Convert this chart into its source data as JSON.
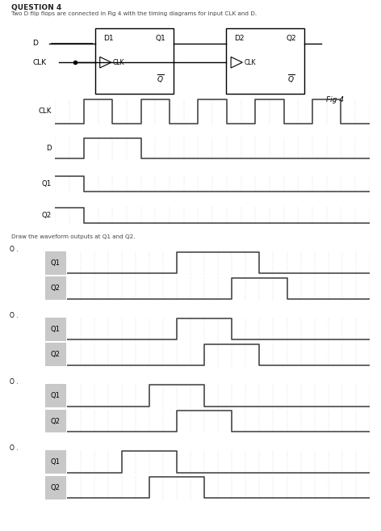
{
  "title": "QUESTION 4",
  "subtitle": "Two D flip flops are connected in Fig 4 with the timing diagrams for input CLK and D.",
  "fig4_label": "Fig 4",
  "draw_label": "Draw the waveform outputs at Q1 and Q2.",
  "clk_wave": [
    0,
    0,
    1,
    1,
    0,
    0,
    1,
    1,
    0,
    0,
    1,
    1,
    0,
    0,
    1,
    1,
    0,
    0,
    1,
    1,
    0,
    0
  ],
  "d_wave": [
    0,
    0,
    1,
    1,
    1,
    1,
    0,
    0,
    0,
    0,
    0,
    0,
    0,
    0,
    0,
    0,
    0,
    0,
    0,
    0,
    0,
    0
  ],
  "q1_given": [
    1,
    1,
    0,
    0,
    0,
    0,
    0,
    0,
    0,
    0,
    0,
    0,
    0,
    0,
    0,
    0,
    0,
    0,
    0,
    0,
    0,
    0
  ],
  "q2_given": [
    1,
    1,
    0,
    0,
    0,
    0,
    0,
    0,
    0,
    0,
    0,
    0,
    0,
    0,
    0,
    0,
    0,
    0,
    0,
    0,
    0,
    0
  ],
  "options": [
    {
      "q1": [
        0,
        0,
        0,
        0,
        0,
        0,
        0,
        0,
        1,
        1,
        1,
        1,
        1,
        1,
        0,
        0,
        0,
        0,
        0,
        0,
        0,
        0
      ],
      "q2": [
        0,
        0,
        0,
        0,
        0,
        0,
        0,
        0,
        0,
        0,
        0,
        0,
        1,
        1,
        1,
        1,
        0,
        0,
        0,
        0,
        0,
        0
      ]
    },
    {
      "q1": [
        0,
        0,
        0,
        0,
        0,
        0,
        0,
        0,
        1,
        1,
        1,
        1,
        0,
        0,
        0,
        0,
        0,
        0,
        0,
        0,
        0,
        0
      ],
      "q2": [
        0,
        0,
        0,
        0,
        0,
        0,
        0,
        0,
        0,
        0,
        1,
        1,
        1,
        1,
        0,
        0,
        0,
        0,
        0,
        0,
        0,
        0
      ]
    },
    {
      "q1": [
        0,
        0,
        0,
        0,
        0,
        0,
        1,
        1,
        1,
        1,
        0,
        0,
        0,
        0,
        0,
        0,
        0,
        0,
        0,
        0,
        0,
        0
      ],
      "q2": [
        0,
        0,
        0,
        0,
        0,
        0,
        0,
        0,
        1,
        1,
        1,
        1,
        0,
        0,
        0,
        0,
        0,
        0,
        0,
        0,
        0,
        0
      ]
    },
    {
      "q1": [
        0,
        0,
        0,
        0,
        1,
        1,
        1,
        1,
        0,
        0,
        0,
        0,
        0,
        0,
        0,
        0,
        0,
        0,
        0,
        0,
        0,
        0
      ],
      "q2": [
        0,
        0,
        0,
        0,
        0,
        0,
        1,
        1,
        1,
        1,
        0,
        0,
        0,
        0,
        0,
        0,
        0,
        0,
        0,
        0,
        0,
        0
      ]
    }
  ],
  "n_steps": 22,
  "bg_label_color": "#c8c8c8",
  "wave_color": "#3a3a3a",
  "grid_color": "#bbbbbb",
  "title_color": "#222222",
  "subtitle_color": "#444444"
}
